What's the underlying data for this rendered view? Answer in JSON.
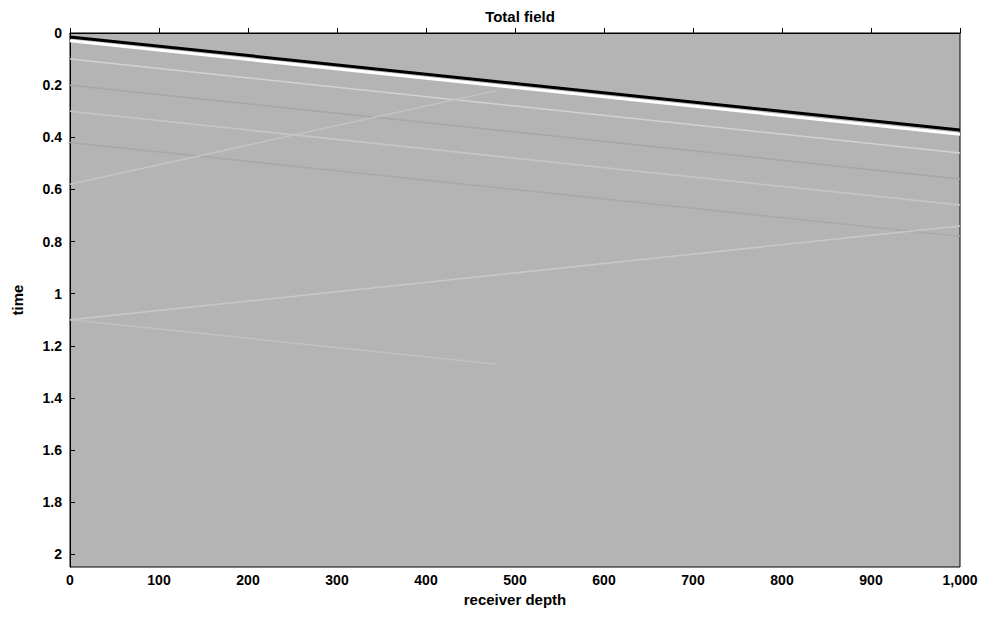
{
  "chart_data": {
    "type": "line",
    "title": "Total field",
    "x_label": "receiver depth",
    "y_label": "time",
    "xlim": [
      0,
      1000
    ],
    "xticks": [
      0,
      100,
      200,
      300,
      400,
      500,
      600,
      700,
      800,
      900,
      1000
    ],
    "ylim": [
      0,
      2.048
    ],
    "yticks": [
      0,
      0.2,
      0.4,
      0.6,
      0.8,
      1,
      1.2,
      1.4,
      1.6,
      1.8,
      2
    ],
    "grid": false,
    "series": [
      {
        "color": "#d2d2d2",
        "line_style": "solid",
        "x": [
          0,
          1000
        ],
        "values": [
          0.1,
          0.46
        ]
      },
      {
        "color": "#a6a6a6",
        "line_style": "solid",
        "x": [
          0,
          1000
        ],
        "values": [
          0.2,
          0.56
        ]
      },
      {
        "color": "#c6c6c6",
        "line_style": "solid",
        "x": [
          0,
          1000
        ],
        "values": [
          0.3,
          0.66
        ]
      },
      {
        "color": "#a8a8a8",
        "line_style": "solid",
        "x": [
          0,
          1000
        ],
        "values": [
          0.42,
          0.78
        ]
      },
      {
        "color": "#c4c4c4",
        "line_style": "solid",
        "x": [
          0,
          480
        ],
        "values": [
          0.58,
          0.22
        ]
      },
      {
        "color": "#c8c8c8",
        "line_style": "solid",
        "x": [
          0,
          1000
        ],
        "values": [
          1.1,
          0.74
        ]
      },
      {
        "color": "#c2c2c2",
        "line_style": "solid",
        "x": [
          0,
          480
        ],
        "values": [
          1.1,
          1.27
        ]
      },
      {
        "color": "#000000",
        "line_style": "solid",
        "x": [
          0,
          1000
        ],
        "values": [
          0.015,
          0.372
        ]
      },
      {
        "color": "#ffffff",
        "line_style": "solid",
        "x": [
          0,
          1000
        ],
        "values": [
          0.03,
          0.388
        ]
      }
    ]
  }
}
